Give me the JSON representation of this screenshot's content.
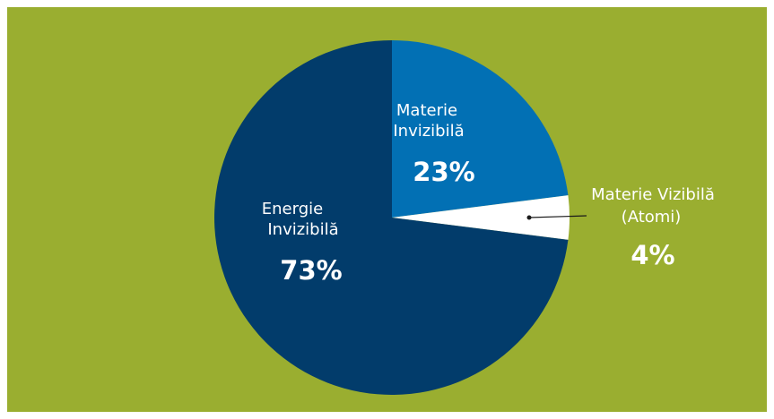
{
  "colors": {
    "background": "#9aae30",
    "energie": "#023c6b",
    "materie_invizibila": "#0270b4",
    "materie_vizibila": "#ffffff",
    "label_text": "#ffffff",
    "leader_line": "#1a1a1a"
  },
  "chart_data": {
    "type": "pie",
    "start_angle_deg": 0,
    "direction": "clockwise",
    "slices": [
      {
        "key": "materie_invizibila",
        "label_lines": [
          "Materie",
          "Invizibilă"
        ],
        "value_text": "23%",
        "value": 23
      },
      {
        "key": "materie_vizibila",
        "label_lines": [
          "Materie Vizibilă",
          "(Atomi)"
        ],
        "value_text": "4%",
        "value": 4
      },
      {
        "key": "energie",
        "label_lines": [
          "Energie",
          "Invizibilă"
        ],
        "value_text": "73%",
        "value": 73
      }
    ]
  }
}
